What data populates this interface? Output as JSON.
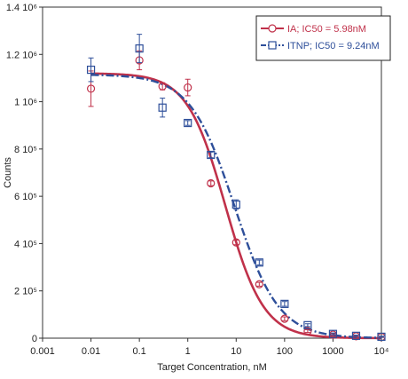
{
  "chart_data": {
    "type": "scatter",
    "xlabel": "Target Concentration, nM",
    "ylabel": "Counts",
    "xscale": "log",
    "xlim": [
      0.001,
      10000
    ],
    "ylim": [
      0,
      1400000
    ],
    "grid": true,
    "x_ticks": [
      {
        "value": 0.001,
        "label": "0.001"
      },
      {
        "value": 0.01,
        "label": "0.01"
      },
      {
        "value": 0.1,
        "label": "0.1"
      },
      {
        "value": 1,
        "label": "1"
      },
      {
        "value": 10,
        "label": "10"
      },
      {
        "value": 100,
        "label": "100"
      },
      {
        "value": 1000,
        "label": "1000"
      },
      {
        "value": 10000,
        "label": "10⁴"
      }
    ],
    "y_ticks": [
      {
        "value": 0,
        "label": "0"
      },
      {
        "value": 200000,
        "label": "2 10⁵"
      },
      {
        "value": 400000,
        "label": "4 10⁵"
      },
      {
        "value": 600000,
        "label": "6 10⁵"
      },
      {
        "value": 800000,
        "label": "8 10⁵"
      },
      {
        "value": 1000000,
        "label": "1 10⁶"
      },
      {
        "value": 1200000,
        "label": "1.2 10⁶"
      },
      {
        "value": 1400000,
        "label": "1.4 10⁶"
      }
    ],
    "legend_position": "top-right",
    "series": [
      {
        "name": "IA; IC50 = 5.98nM",
        "color": "#c0314a",
        "marker": "circle",
        "points": [
          {
            "x": 0.01,
            "y": 1055000,
            "err": 75000
          },
          {
            "x": 0.1,
            "y": 1175000,
            "err": 40000
          },
          {
            "x": 0.3,
            "y": 1065000,
            "err": 15000
          },
          {
            "x": 1,
            "y": 1060000,
            "err": 35000
          },
          {
            "x": 3,
            "y": 655000,
            "err": 10000
          },
          {
            "x": 10,
            "y": 405000,
            "err": 10000
          },
          {
            "x": 30,
            "y": 228000,
            "err": 8000
          },
          {
            "x": 100,
            "y": 82000,
            "err": 8000
          },
          {
            "x": 300,
            "y": 30000,
            "err": 6000
          },
          {
            "x": 1000,
            "y": 15000,
            "err": 4000
          },
          {
            "x": 3000,
            "y": 8000,
            "err": 3000
          },
          {
            "x": 10000,
            "y": 5000,
            "err": 2000
          }
        ],
        "fit": {
          "bottom": 0,
          "top": 1120000,
          "ic50": 5.98,
          "hill": 1.1
        }
      },
      {
        "name": "ITNP; IC50 = 9.24nM",
        "color": "#2e4f9a",
        "marker": "square",
        "points": [
          {
            "x": 0.01,
            "y": 1135000,
            "err": 50000
          },
          {
            "x": 0.1,
            "y": 1225000,
            "err": 60000
          },
          {
            "x": 0.3,
            "y": 975000,
            "err": 40000
          },
          {
            "x": 1,
            "y": 910000,
            "err": 10000
          },
          {
            "x": 3,
            "y": 775000,
            "err": 12000
          },
          {
            "x": 10,
            "y": 565000,
            "err": 20000
          },
          {
            "x": 30,
            "y": 320000,
            "err": 10000
          },
          {
            "x": 100,
            "y": 145000,
            "err": 10000
          },
          {
            "x": 300,
            "y": 55000,
            "err": 6000
          },
          {
            "x": 1000,
            "y": 18000,
            "err": 4000
          },
          {
            "x": 3000,
            "y": 10000,
            "err": 3000
          },
          {
            "x": 10000,
            "y": 6000,
            "err": 2000
          }
        ],
        "fit": {
          "bottom": 0,
          "top": 1115000,
          "ic50": 9.24,
          "hill": 0.95
        }
      }
    ]
  }
}
